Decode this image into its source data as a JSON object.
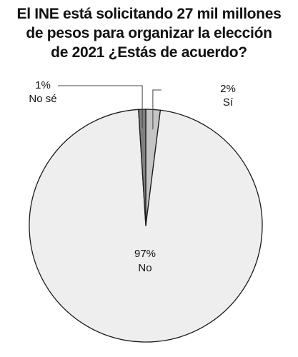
{
  "chart_data": {
    "type": "pie",
    "title_lines": [
      "El INE está solicitando 27 mil millones",
      "de pesos para organizar la elección",
      "de 2021 ¿Estás de acuerdo?"
    ],
    "slices": [
      {
        "label": "Sí",
        "value": 2,
        "value_label": "2%",
        "color": "#c4c4c4"
      },
      {
        "label": "No",
        "value": 97,
        "value_label": "97%",
        "color": "#eeeeee"
      },
      {
        "label": "No sé",
        "value": 1,
        "value_label": "1%",
        "color": "#7f7f7f"
      }
    ],
    "start_angle_deg": 0,
    "direction": "clockwise",
    "outline_color": "#1a1a1a"
  }
}
